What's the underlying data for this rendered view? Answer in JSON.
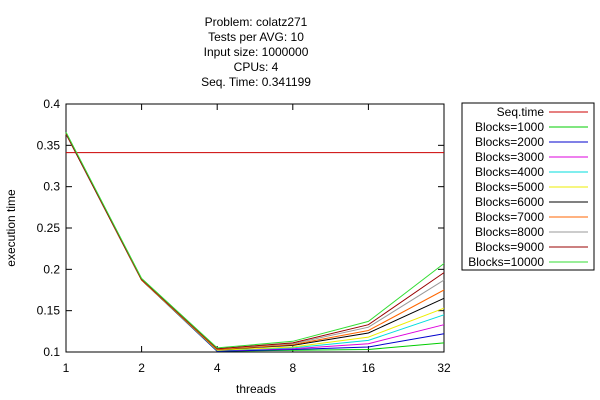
{
  "chart_data": {
    "type": "line",
    "title_lines": [
      "Problem: colatz271",
      "Tests per AVG: 10",
      "Input size: 1000000",
      "CPUs: 4",
      "Seq. Time: 0.341199"
    ],
    "xlabel": "threads",
    "ylabel": "execution time",
    "x": [
      1,
      2,
      4,
      8,
      16,
      32
    ],
    "x_tick_labels": [
      "1",
      "2",
      "4",
      "8",
      "16",
      "32"
    ],
    "x_scale": "log2",
    "y_ticks": [
      0.1,
      0.15,
      0.2,
      0.25,
      0.3,
      0.35,
      0.4
    ],
    "y_tick_labels": [
      "0.1",
      "0.15",
      "0.2",
      "0.25",
      "0.3",
      "0.35",
      "0.4"
    ],
    "ylim": [
      0.1,
      0.4
    ],
    "grid": false,
    "legend_position": "outside-right",
    "series": [
      {
        "name": "Seq.time",
        "color": "#cc0000",
        "values": [
          0.341199,
          0.341199,
          0.341199,
          0.341199,
          0.341199,
          0.341199
        ]
      },
      {
        "name": "Blocks=1000",
        "color": "#00cc00",
        "values": [
          0.365,
          0.187,
          0.101,
          0.102,
          0.103,
          0.111
        ]
      },
      {
        "name": "Blocks=2000",
        "color": "#0000cc",
        "values": [
          0.364,
          0.187,
          0.101,
          0.103,
          0.106,
          0.122
        ]
      },
      {
        "name": "Blocks=3000",
        "color": "#dd00dd",
        "values": [
          0.364,
          0.187,
          0.102,
          0.104,
          0.11,
          0.133
        ]
      },
      {
        "name": "Blocks=4000",
        "color": "#00dddd",
        "values": [
          0.364,
          0.187,
          0.102,
          0.105,
          0.114,
          0.145
        ]
      },
      {
        "name": "Blocks=5000",
        "color": "#eeee00",
        "values": [
          0.364,
          0.187,
          0.102,
          0.106,
          0.118,
          0.153
        ]
      },
      {
        "name": "Blocks=6000",
        "color": "#000000",
        "values": [
          0.364,
          0.187,
          0.103,
          0.108,
          0.123,
          0.165
        ]
      },
      {
        "name": "Blocks=7000",
        "color": "#ff6600",
        "values": [
          0.364,
          0.187,
          0.103,
          0.109,
          0.126,
          0.175
        ]
      },
      {
        "name": "Blocks=8000",
        "color": "#999999",
        "values": [
          0.364,
          0.188,
          0.104,
          0.11,
          0.13,
          0.187
        ]
      },
      {
        "name": "Blocks=9000",
        "color": "#990000",
        "values": [
          0.364,
          0.188,
          0.104,
          0.111,
          0.133,
          0.196
        ]
      },
      {
        "name": "Blocks=10000",
        "color": "#33dd33",
        "values": [
          0.366,
          0.189,
          0.105,
          0.113,
          0.137,
          0.207
        ]
      }
    ]
  }
}
